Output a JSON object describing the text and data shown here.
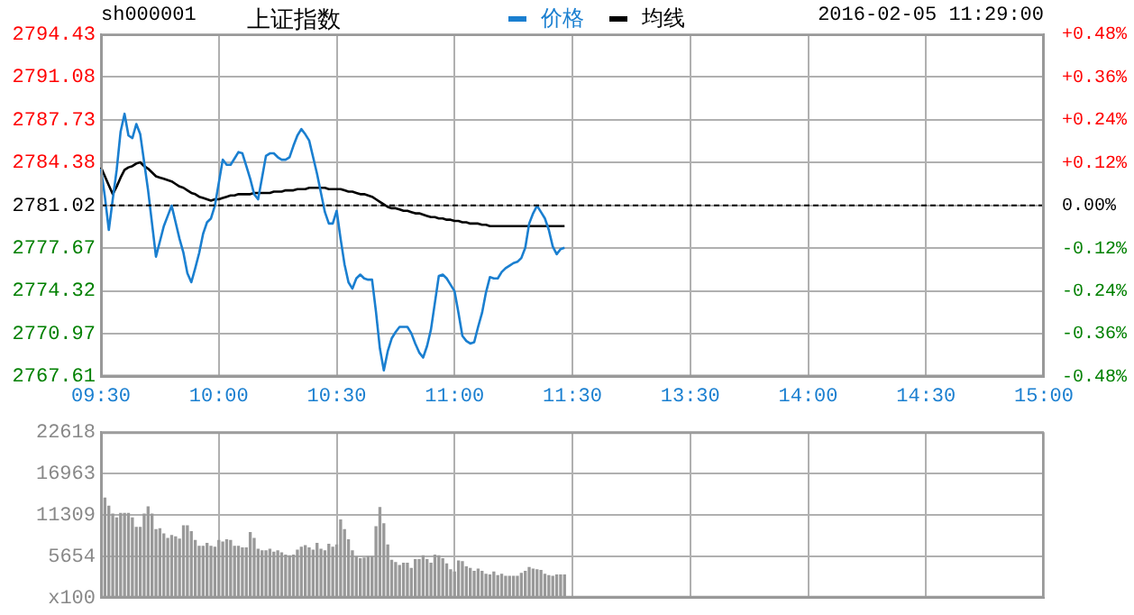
{
  "chart_data": [
    {
      "type": "line",
      "title": "上证指数",
      "annotations": [
        "sh000001",
        "2016-02-05 11:29:00"
      ],
      "categories": [
        "09:30",
        null,
        null,
        null,
        null,
        null,
        null,
        null,
        null,
        null,
        null,
        null,
        null,
        null,
        null,
        null,
        null,
        null,
        null,
        null,
        null,
        null,
        null,
        null,
        null,
        null,
        null,
        null,
        null,
        null,
        "10:00",
        null,
        null,
        null,
        null,
        null,
        null,
        null,
        null,
        null,
        null,
        null,
        null,
        null,
        null,
        null,
        null,
        null,
        null,
        null,
        null,
        null,
        null,
        null,
        null,
        null,
        null,
        null,
        null,
        null,
        "10:30",
        null,
        null,
        null,
        null,
        null,
        null,
        null,
        null,
        null,
        null,
        null,
        null,
        null,
        null,
        null,
        null,
        null,
        null,
        null,
        null,
        null,
        null,
        null,
        null,
        null,
        null,
        null,
        null,
        null,
        "11:00",
        null,
        null,
        null,
        null,
        null,
        null,
        null,
        null,
        null,
        null,
        null,
        null,
        null,
        null,
        null,
        null,
        null,
        null,
        null,
        null,
        null,
        null,
        null,
        null,
        null,
        null,
        null,
        null,
        null,
        "11:30",
        null,
        null,
        null,
        null,
        null,
        null,
        null,
        null,
        null,
        null,
        null,
        null,
        null,
        null,
        null,
        null,
        null,
        null,
        null,
        null,
        null,
        null,
        null,
        null,
        null,
        null,
        null,
        null,
        null,
        "13:30",
        null,
        null,
        null,
        null,
        null,
        null,
        null,
        null,
        null,
        null,
        null,
        null,
        null,
        null,
        null,
        null,
        null,
        null,
        null,
        null,
        null,
        null,
        null,
        null,
        null,
        null,
        null,
        null,
        null,
        "14:00",
        null,
        null,
        null,
        null,
        null,
        null,
        null,
        null,
        null,
        null,
        null,
        null,
        null,
        null,
        null,
        null,
        null,
        null,
        null,
        null,
        null,
        null,
        null,
        null,
        null,
        null,
        null,
        null,
        null,
        "14:30",
        null,
        null,
        null,
        null,
        null,
        null,
        null,
        null,
        null,
        null,
        null,
        null,
        null,
        null,
        null,
        null,
        null,
        null,
        null,
        null,
        null,
        null,
        null,
        null,
        null,
        null,
        null,
        null,
        null,
        "15:00"
      ],
      "series": [
        {
          "name": "价格",
          "color": "#1a7fd0",
          "values": [
            2783.9,
            2781.7,
            2779.1,
            2781.5,
            2783.8,
            2786.8,
            2788.2,
            2786.5,
            2786.3,
            2787.4,
            2786.6,
            2784.4,
            2782.2,
            2779.6,
            2777.0,
            2778.2,
            2779.4,
            2780.2,
            2781.0,
            2779.7,
            2778.4,
            2777.3,
            2775.7,
            2775.0,
            2776.1,
            2777.3,
            2778.8,
            2779.7,
            2780.0,
            2781.0,
            2782.8,
            2784.6,
            2784.2,
            2784.2,
            2784.7,
            2785.2,
            2785.1,
            2784.1,
            2783.1,
            2781.9,
            2781.5,
            2783.2,
            2784.9,
            2785.1,
            2785.1,
            2784.8,
            2784.6,
            2784.6,
            2784.8,
            2785.7,
            2786.5,
            2787.0,
            2786.6,
            2786.1,
            2784.8,
            2783.5,
            2782.0,
            2780.5,
            2779.6,
            2779.6,
            2780.6,
            2778.4,
            2776.4,
            2775.0,
            2774.5,
            2775.3,
            2775.6,
            2775.3,
            2775.2,
            2775.2,
            2772.7,
            2769.8,
            2768.1,
            2769.6,
            2770.6,
            2771.1,
            2771.5,
            2771.5,
            2771.5,
            2771.0,
            2770.2,
            2769.5,
            2769.1,
            2770.0,
            2771.3,
            2773.4,
            2775.5,
            2775.6,
            2775.3,
            2774.8,
            2774.3,
            2772.6,
            2770.8,
            2770.4,
            2770.2,
            2770.3,
            2771.5,
            2772.6,
            2774.2,
            2775.4,
            2775.3,
            2775.3,
            2775.8,
            2776.1,
            2776.3,
            2776.5,
            2776.6,
            2776.9,
            2777.7,
            2779.6,
            2780.4,
            2781.0,
            2780.5,
            2780.0,
            2779.1,
            2777.8,
            2777.2,
            2777.6,
            2777.7,
            null,
            null,
            null,
            null,
            null,
            null,
            null,
            null,
            null,
            null,
            null,
            null,
            null,
            null,
            null,
            null,
            null,
            null,
            null,
            null,
            null,
            null,
            null,
            null,
            null,
            null,
            null,
            null,
            null,
            null,
            null,
            null,
            null,
            null,
            null,
            null,
            null,
            null,
            null,
            null,
            null,
            null,
            null,
            null,
            null,
            null,
            null,
            null,
            null,
            null,
            null,
            null,
            null,
            null,
            null,
            null,
            null,
            null,
            null,
            null,
            null,
            null,
            null,
            null,
            null,
            null,
            null,
            null,
            null,
            null,
            null,
            null,
            null,
            null,
            null,
            null,
            null,
            null,
            null,
            null,
            null,
            null,
            null,
            null,
            null,
            null,
            null,
            null,
            null,
            null,
            null,
            null,
            null,
            null,
            null,
            null,
            null,
            null,
            null,
            null,
            null,
            null,
            null,
            null,
            null,
            null,
            null,
            null,
            null,
            null,
            null,
            null,
            null,
            null,
            null,
            null,
            null,
            null,
            null,
            null,
            null,
            null
          ]
        },
        {
          "name": "均线",
          "color": "#000000",
          "values": [
            2784.0,
            2783.3,
            2782.6,
            2781.9,
            2782.5,
            2783.2,
            2783.8,
            2784.0,
            2784.1,
            2784.3,
            2784.4,
            2784.1,
            2783.9,
            2783.6,
            2783.3,
            2783.2,
            2783.1,
            2783.0,
            2782.9,
            2782.7,
            2782.5,
            2782.4,
            2782.2,
            2782.0,
            2781.9,
            2781.7,
            2781.6,
            2781.5,
            2781.4,
            2781.5,
            2781.5,
            2781.6,
            2781.7,
            2781.8,
            2781.8,
            2781.9,
            2781.9,
            2781.9,
            2781.9,
            2782.0,
            2782.0,
            2782.0,
            2782.0,
            2782.0,
            2782.1,
            2782.1,
            2782.1,
            2782.2,
            2782.2,
            2782.2,
            2782.3,
            2782.3,
            2782.3,
            2782.4,
            2782.4,
            2782.4,
            2782.4,
            2782.4,
            2782.3,
            2782.3,
            2782.3,
            2782.3,
            2782.2,
            2782.1,
            2782.1,
            2782.0,
            2781.9,
            2781.9,
            2781.8,
            2781.7,
            2781.5,
            2781.3,
            2781.1,
            2780.9,
            2780.8,
            2780.8,
            2780.7,
            2780.6,
            2780.6,
            2780.5,
            2780.4,
            2780.4,
            2780.3,
            2780.2,
            2780.1,
            2780.1,
            2780.0,
            2780.0,
            2779.9,
            2779.9,
            2779.8,
            2779.8,
            2779.7,
            2779.7,
            2779.6,
            2779.6,
            2779.6,
            2779.5,
            2779.5,
            2779.4,
            2779.4,
            2779.4,
            2779.4,
            2779.4,
            2779.4,
            2779.4,
            2779.4,
            2779.4,
            2779.4,
            2779.4,
            2779.4,
            2779.4,
            2779.4,
            2779.4,
            2779.4,
            2779.4,
            2779.4,
            2779.4,
            2779.4,
            null,
            null,
            null,
            null,
            null,
            null,
            null,
            null,
            null,
            null,
            null,
            null,
            null,
            null,
            null,
            null,
            null,
            null,
            null,
            null,
            null,
            null,
            null,
            null,
            null,
            null,
            null,
            null,
            null,
            null,
            null,
            null,
            null,
            null,
            null,
            null,
            null,
            null,
            null,
            null,
            null,
            null,
            null,
            null,
            null,
            null,
            null,
            null,
            null,
            null,
            null,
            null,
            null,
            null,
            null,
            null,
            null,
            null,
            null,
            null,
            null,
            null,
            null,
            null,
            null,
            null,
            null,
            null,
            null,
            null,
            null,
            null,
            null,
            null,
            null,
            null,
            null,
            null,
            null,
            null,
            null,
            null,
            null,
            null,
            null,
            null,
            null,
            null,
            null,
            null,
            null,
            null,
            null,
            null,
            null,
            null,
            null,
            null,
            null,
            null,
            null,
            null,
            null,
            null,
            null,
            null,
            null,
            null,
            null,
            null,
            null,
            null,
            null,
            null,
            null,
            null,
            null,
            null,
            null,
            null,
            null,
            null
          ]
        }
      ],
      "ylim": [
        2767.61,
        2794.43
      ],
      "yticks": [
        2767.61,
        2770.97,
        2774.32,
        2777.67,
        2781.02,
        2784.38,
        2787.73,
        2791.08,
        2794.43
      ],
      "y2lim": [
        -0.48,
        0.48
      ],
      "y2ticks": [
        {
          "value": -0.48,
          "label": "-0.48%"
        },
        {
          "value": -0.36,
          "label": "-0.36%"
        },
        {
          "value": -0.24,
          "label": "-0.24%"
        },
        {
          "value": -0.12,
          "label": "-0.12%"
        },
        {
          "value": 0,
          "label": "0.00%"
        },
        {
          "value": 0.12,
          "label": "+0.12%"
        },
        {
          "value": 0.24,
          "label": "+0.24%"
        },
        {
          "value": 0.36,
          "label": "+0.36%"
        },
        {
          "value": 0.48,
          "label": "+0.48%"
        }
      ],
      "ref_lines": [
        {
          "axis": "y",
          "value": 2781.02,
          "color": "#000000",
          "line_style": "dashed"
        }
      ],
      "grid": true,
      "legend": "top",
      "marker": "none",
      "line_style": "solid"
    },
    {
      "type": "bar",
      "color": "#999999",
      "categories": [
        null,
        null,
        null,
        null,
        null,
        null,
        null,
        null,
        null,
        null,
        null,
        null,
        null,
        null,
        null,
        null,
        null,
        null,
        null,
        null,
        null,
        null,
        null,
        null,
        null,
        null,
        null,
        null,
        null,
        null,
        null,
        null,
        null,
        null,
        null,
        null,
        null,
        null,
        null,
        null,
        null,
        null,
        null,
        null,
        null,
        null,
        null,
        null,
        null,
        null,
        null,
        null,
        null,
        null,
        null,
        null,
        null,
        null,
        null,
        null,
        null,
        null,
        null,
        null,
        null,
        null,
        null,
        null,
        null,
        null,
        null,
        null,
        null,
        null,
        null,
        null,
        null,
        null,
        null,
        null,
        null,
        null,
        null,
        null,
        null,
        null,
        null,
        null,
        null,
        null,
        null,
        null,
        null,
        null,
        null,
        null,
        null,
        null,
        null,
        null,
        null,
        null,
        null,
        null,
        null,
        null,
        null,
        null,
        null,
        null,
        null,
        null,
        null,
        null,
        null,
        null,
        null,
        null,
        null,
        null,
        null,
        null,
        null,
        null,
        null,
        null,
        null,
        null,
        null,
        null,
        null,
        null,
        null,
        null,
        null,
        null,
        null,
        null,
        null,
        null,
        null,
        null,
        null,
        null,
        null,
        null,
        null,
        null,
        null,
        null,
        null,
        null,
        null,
        null,
        null,
        null,
        null,
        null,
        null,
        null,
        null,
        null,
        null,
        null,
        null,
        null,
        null,
        null,
        null,
        null,
        null,
        null,
        null,
        null,
        null,
        null,
        null,
        null,
        null,
        null,
        null,
        null,
        null,
        null,
        null,
        null,
        null,
        null,
        null,
        null,
        null,
        null,
        null,
        null,
        null,
        null,
        null,
        null,
        null,
        null,
        null,
        null,
        null,
        null,
        null,
        null,
        null,
        null,
        null,
        null,
        null,
        null,
        null,
        null,
        null,
        null,
        null,
        null,
        null,
        null,
        null,
        null,
        null,
        null,
        null,
        null,
        null,
        null,
        null,
        null,
        null,
        null,
        null,
        null,
        null,
        null,
        null,
        null,
        null,
        null,
        null
      ],
      "values": [
        null,
        13600,
        12500,
        11400,
        10900,
        11500,
        11500,
        11500,
        10900,
        9600,
        9600,
        11400,
        12400,
        11400,
        9300,
        9400,
        8700,
        8100,
        8500,
        8300,
        8000,
        9800,
        9800,
        9000,
        7800,
        7000,
        7000,
        7400,
        7000,
        6900,
        7800,
        7600,
        7900,
        7800,
        7000,
        7000,
        6800,
        6800,
        8900,
        8100,
        6600,
        6400,
        6400,
        6600,
        6200,
        6400,
        6100,
        5800,
        5700,
        5800,
        6500,
        6900,
        7100,
        6800,
        6500,
        7400,
        6600,
        6400,
        7300,
        6900,
        7200,
        10600,
        9300,
        7900,
        6400,
        5600,
        5300,
        5400,
        5600,
        5600,
        9700,
        12300,
        10100,
        7200,
        5100,
        4800,
        4400,
        4700,
        4700,
        4000,
        5200,
        5200,
        5700,
        5200,
        4700,
        5800,
        5700,
        5300,
        4600,
        3800,
        3500,
        5000,
        4900,
        4200,
        4000,
        3600,
        3900,
        3600,
        3200,
        3100,
        3500,
        3000,
        3200,
        2900,
        2900,
        2900,
        2900,
        3300,
        3600,
        4100,
        3900,
        3800,
        3700,
        3200,
        3000,
        2900,
        3100,
        3100,
        3100,
        null,
        null,
        null,
        null,
        null,
        null,
        null,
        null,
        null,
        null,
        null,
        null,
        null,
        null,
        null,
        null,
        null,
        null,
        null,
        null,
        null,
        null,
        null,
        null,
        null,
        null,
        null,
        null,
        null,
        null,
        null,
        null,
        null,
        null,
        null,
        null,
        null,
        null,
        null,
        null,
        null,
        null,
        null,
        null,
        null,
        null,
        null,
        null,
        null,
        null,
        null,
        null,
        null,
        null,
        null,
        null,
        null,
        null,
        null,
        null,
        null,
        null,
        null,
        null,
        null,
        null,
        null,
        null,
        null,
        null,
        null,
        null,
        null,
        null,
        null,
        null,
        null,
        null,
        null,
        null,
        null,
        null,
        null,
        null,
        null,
        null,
        null,
        null,
        null,
        null,
        null,
        null,
        null,
        null,
        null,
        null,
        null,
        null,
        null,
        null,
        null,
        null,
        null,
        null,
        null,
        null,
        null,
        null,
        null,
        null,
        null,
        null,
        null,
        null,
        null,
        null,
        null,
        null,
        null,
        null,
        null,
        null
      ],
      "ylim": [
        0,
        22618
      ],
      "yticks": [
        {
          "value": 0,
          "label": "x100"
        },
        5654,
        11309,
        16963,
        22618
      ],
      "grid": true,
      "tick_labels": "y"
    }
  ]
}
